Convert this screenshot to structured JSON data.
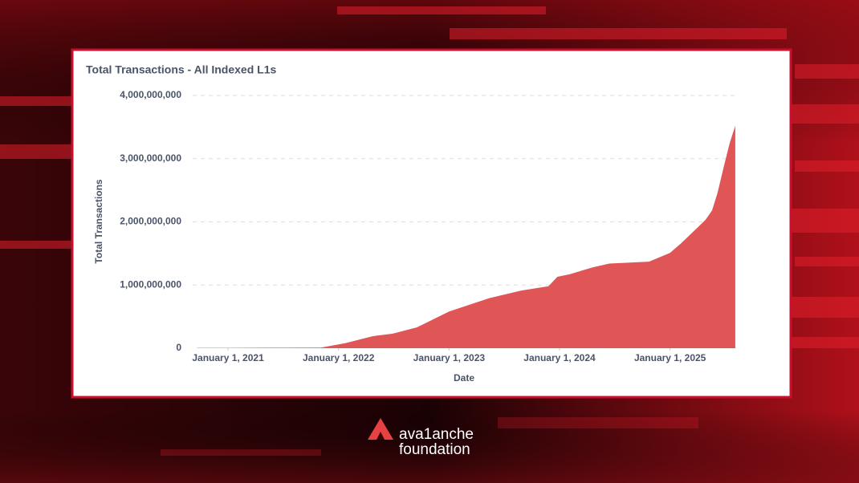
{
  "chart_data": {
    "type": "area",
    "title": "Total Transactions - All Indexed L1s",
    "x_label": "Date",
    "y_label": "Total Transactions",
    "x": [
      2020.72,
      2021.0,
      2021.5,
      2021.84,
      2022.06,
      2022.31,
      2022.49,
      2022.71,
      2023.0,
      2023.36,
      2023.65,
      2023.9,
      2023.98,
      2024.09,
      2024.3,
      2024.45,
      2024.81,
      2025.0,
      2025.1,
      2025.29,
      2025.32,
      2025.38,
      2025.43,
      2025.49,
      2025.54,
      2025.59
    ],
    "values": [
      5000000,
      5000000,
      7000000,
      10000000,
      80000000,
      190000000,
      230000000,
      330000000,
      580000000,
      790000000,
      910000000,
      980000000,
      1130000000,
      1170000000,
      1280000000,
      1340000000,
      1370000000,
      1510000000,
      1660000000,
      1980000000,
      2030000000,
      2180000000,
      2460000000,
      2900000000,
      3250000000,
      3520000000
    ],
    "color": "#e05555",
    "xlim": [
      2020.68,
      2025.62
    ],
    "xticks": [
      {
        "value": 2021,
        "label": "January 1, 2021"
      },
      {
        "value": 2022,
        "label": "January 1, 2022"
      },
      {
        "value": 2023,
        "label": "January 1, 2023"
      },
      {
        "value": 2024,
        "label": "January 1, 2024"
      },
      {
        "value": 2025,
        "label": "January 1, 2025"
      }
    ],
    "ylim": [
      0,
      4000000000
    ],
    "yticks": [
      0,
      {
        "value": 1000000000,
        "label": "1,000,000,000"
      },
      {
        "value": 2000000000,
        "label": "2,000,000,000"
      },
      {
        "value": 3000000000,
        "label": "3,000,000,000"
      },
      {
        "value": 4000000000,
        "label": "4,000,000,000"
      }
    ],
    "grid": true
  },
  "logo": {
    "line1": "ava1anche",
    "line2": "foundation"
  }
}
